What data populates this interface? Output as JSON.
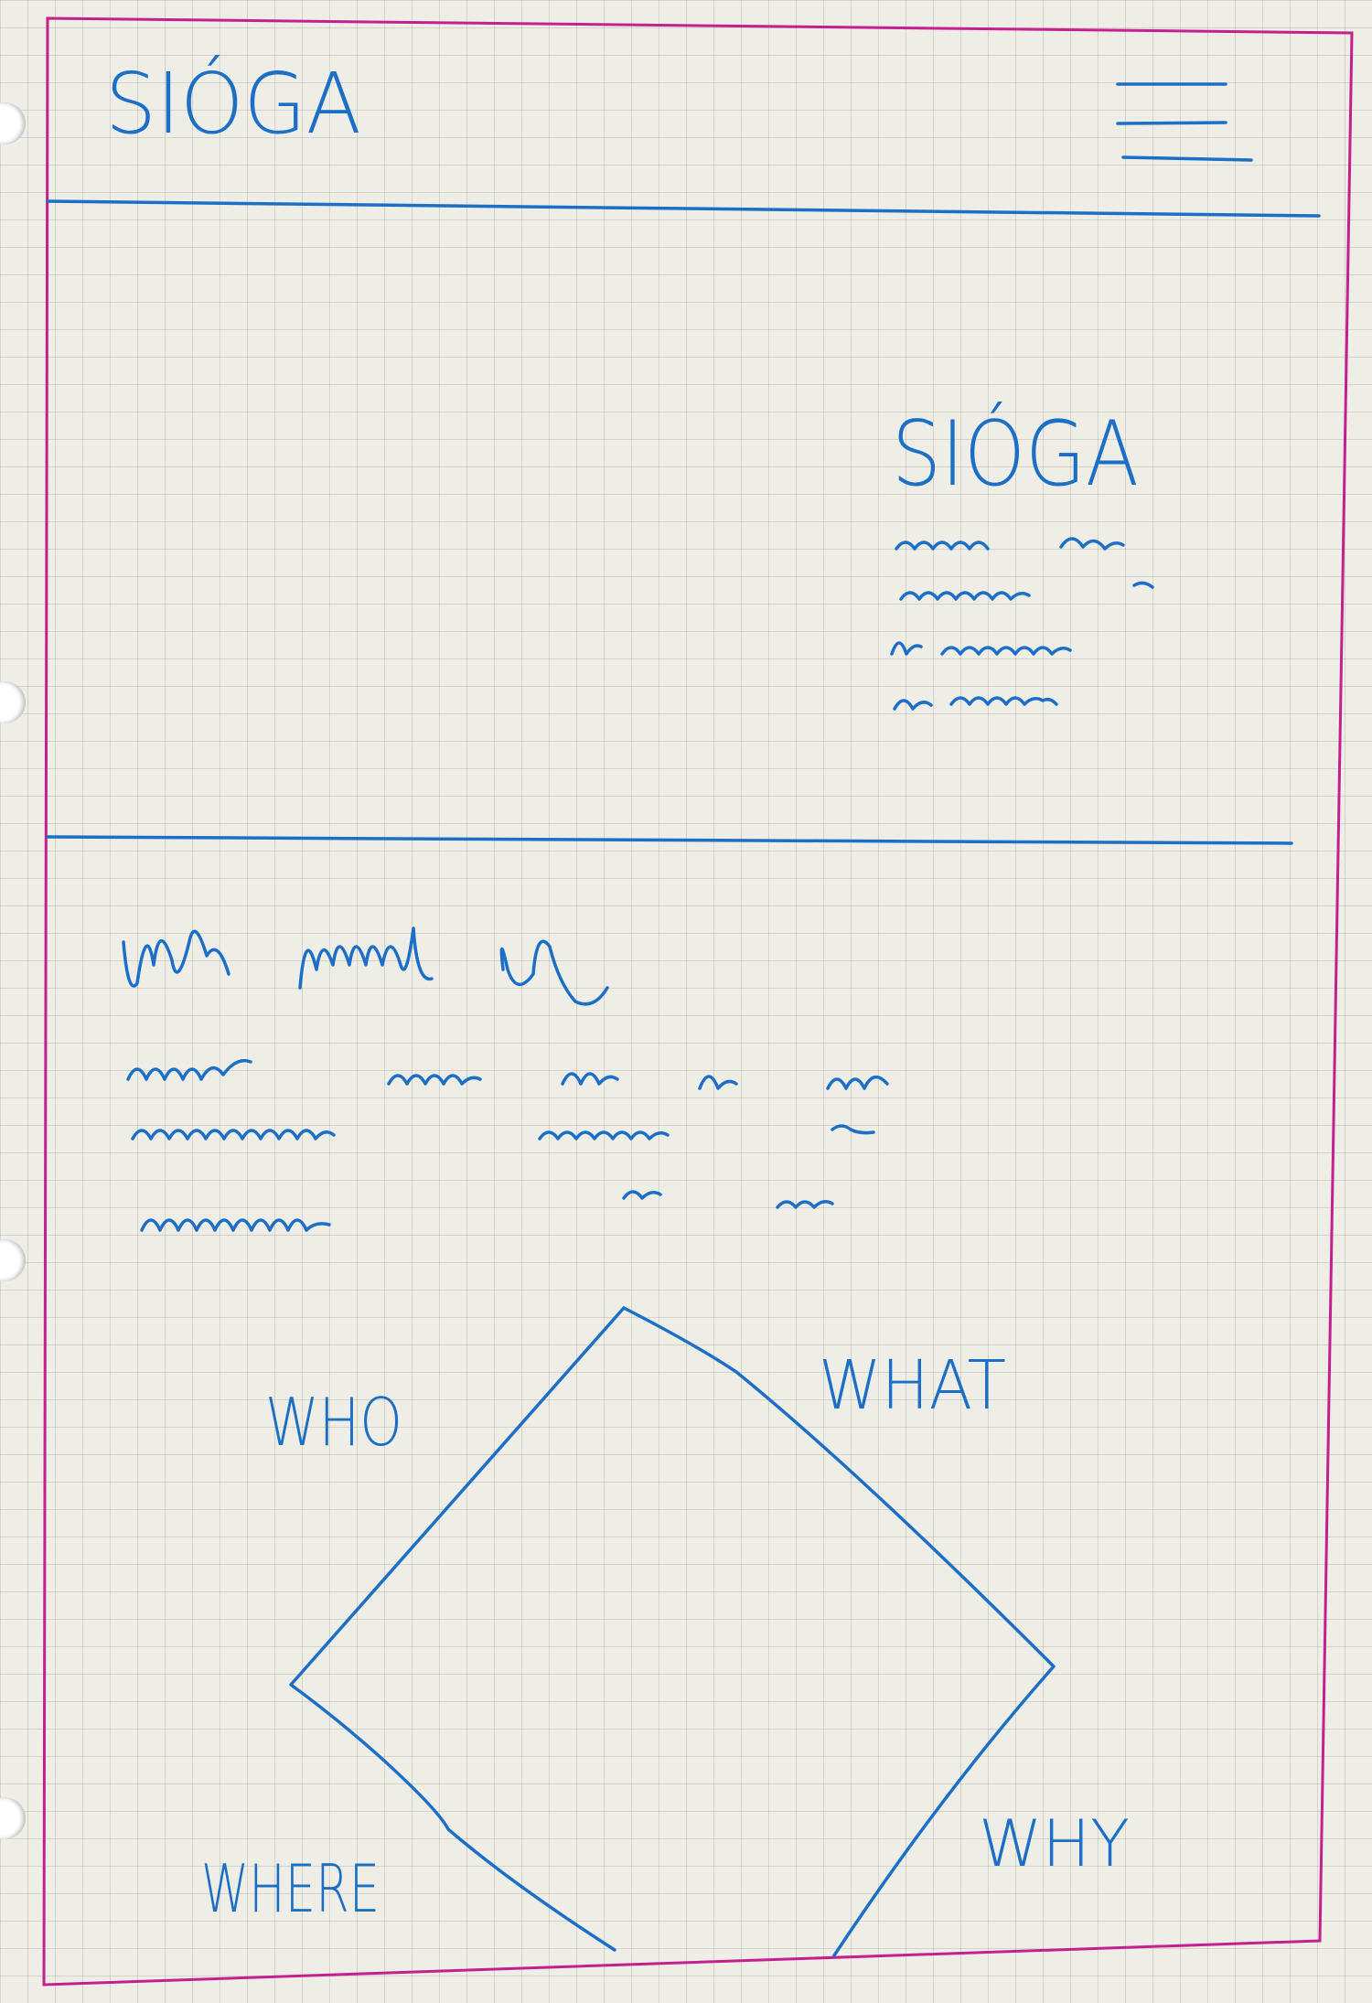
{
  "header": {
    "logo_text": "SIÓGA",
    "menu_icon": "hamburger-menu-icon"
  },
  "hero": {
    "title": "SIÓGA",
    "text_lines": 4
  },
  "about": {
    "heading_placeholder": "squiggle-heading",
    "text_lines": 3
  },
  "diagram": {
    "labels": {
      "who": "WHO",
      "what": "WHAT",
      "where": "WHERE",
      "why": "WHY"
    }
  },
  "colors": {
    "ink": "#1c6fc6",
    "frame": "#c4208f",
    "paper": "#eeede6"
  }
}
